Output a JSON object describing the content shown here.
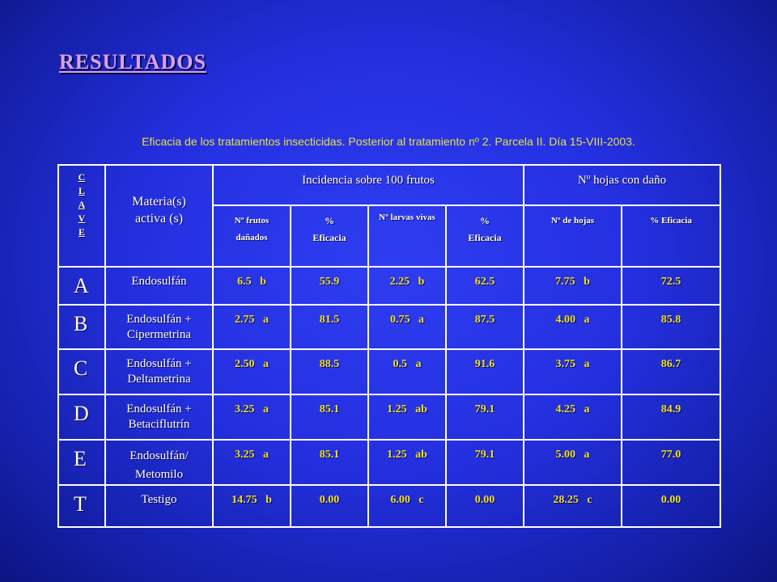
{
  "title": "RESULTADOS",
  "subtitle": "Eficacia de los tratamientos insecticidas. Posterior al tratamiento nº 2. Parcela II. Día 15-VIII-2003.",
  "header": {
    "clave": [
      "C",
      "L",
      "A",
      "V",
      "E"
    ],
    "materia_line1": "Materia(s)",
    "materia_line2": "activa (s)",
    "incidencia": "Incidencia sobre 100 frutos",
    "hojas": "Nº hojas con daño",
    "sub": {
      "frutos_1": "Nº frutos",
      "frutos_2": "dañados",
      "ef1_1": "%",
      "ef1_2": "Eficacia",
      "larvas": "Nº larvas vivas",
      "ef2_1": "%",
      "ef2_2": "Eficacia",
      "nhojas": "Nº de hojas",
      "ef3": "% Eficacia"
    }
  },
  "rows": [
    {
      "key": "A",
      "materia": "Endosulfán",
      "materia2": "",
      "frutos": "6.5   b",
      "ef1": "55.9",
      "larvas": "2.25   b",
      "ef2": "62.5",
      "hojas": "7.75   b",
      "ef3": "72.5"
    },
    {
      "key": "B",
      "materia": "Endosulfán +",
      "materia2": "Cipermetrina",
      "frutos": "2.75   a",
      "ef1": "81.5",
      "larvas": "0.75   a",
      "ef2": "87.5",
      "hojas": "4.00   a",
      "ef3": "85.8"
    },
    {
      "key": "C",
      "materia": "Endosulfán +",
      "materia2": "Deltametrina",
      "frutos": "2.50   a",
      "ef1": "88.5",
      "larvas": "0.5   a",
      "ef2": "91.6",
      "hojas": "3.75   a",
      "ef3": "86.7"
    },
    {
      "key": "D",
      "materia": "Endosulfán +",
      "materia2": "Betaciflutrín",
      "frutos": "3.25   a",
      "ef1": "85.1",
      "larvas": "1.25   ab",
      "ef2": "79.1",
      "hojas": "4.25   a",
      "ef3": "84.9"
    },
    {
      "key": "E",
      "materia": "Endosulfán/",
      "materia2": "Metomilo",
      "frutos": "3.25   a",
      "ef1": "85.1",
      "larvas": "1.25   ab",
      "ef2": "79.1",
      "hojas": "5.00   a",
      "ef3": "77.0"
    },
    {
      "key": "T",
      "materia": "Testigo",
      "materia2": "",
      "frutos": "14.75   b",
      "ef1": "0.00",
      "larvas": "6.00   c",
      "ef2": "0.00",
      "hojas": "28.25   c",
      "ef3": "0.00"
    }
  ]
}
